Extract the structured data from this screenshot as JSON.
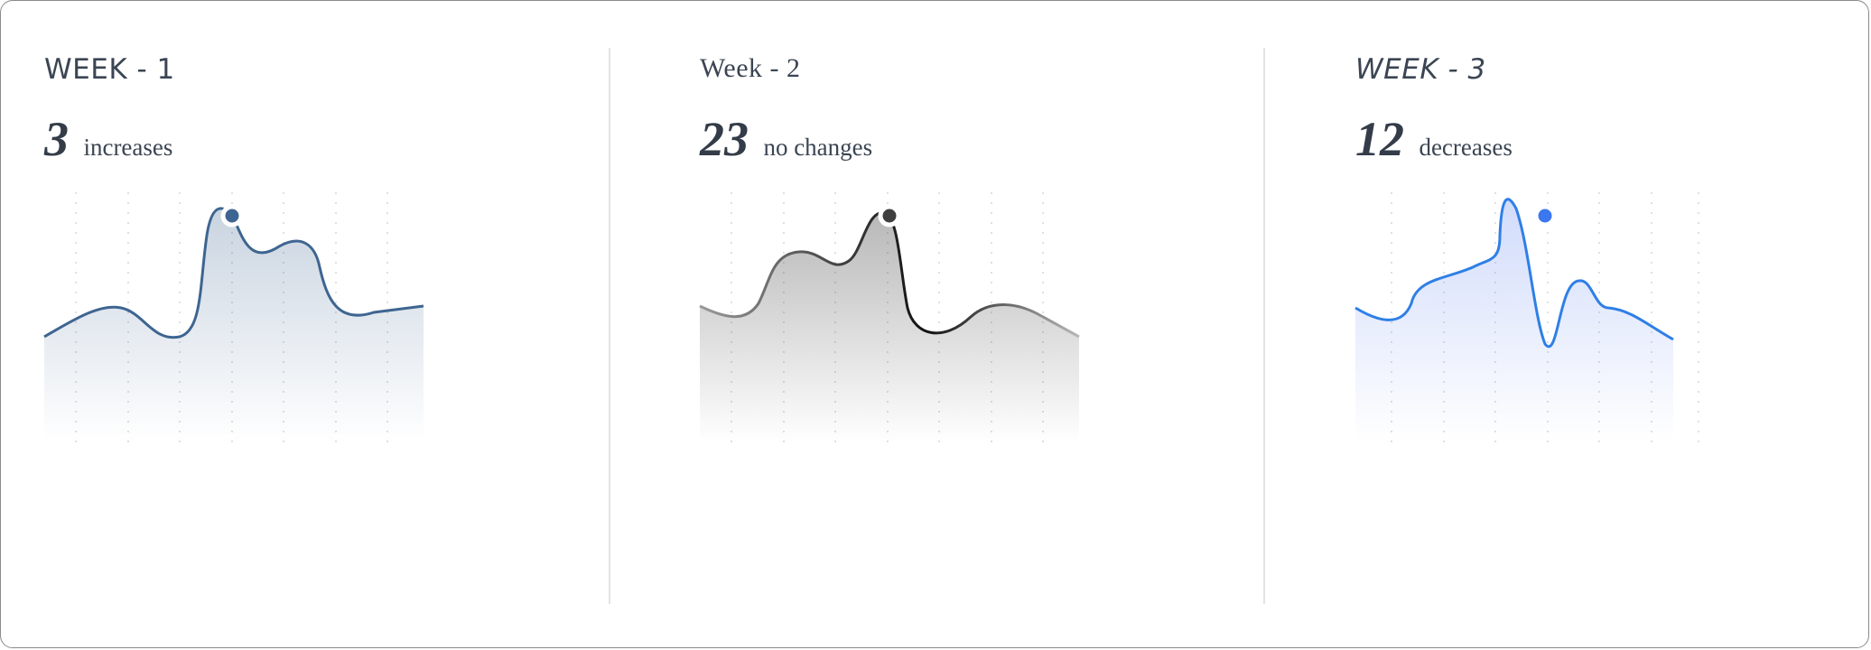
{
  "weeks": [
    {
      "title": "WEEK - 1",
      "count": "3",
      "change_label": "increases",
      "color": "#3e6591"
    },
    {
      "title": "Week - 2",
      "count": "23",
      "change_label": "no changes",
      "color": "#3a3a3a"
    },
    {
      "title": "WEEK - 3",
      "count": "12",
      "change_label": "decreases",
      "color": "#2f7fe6"
    }
  ]
}
